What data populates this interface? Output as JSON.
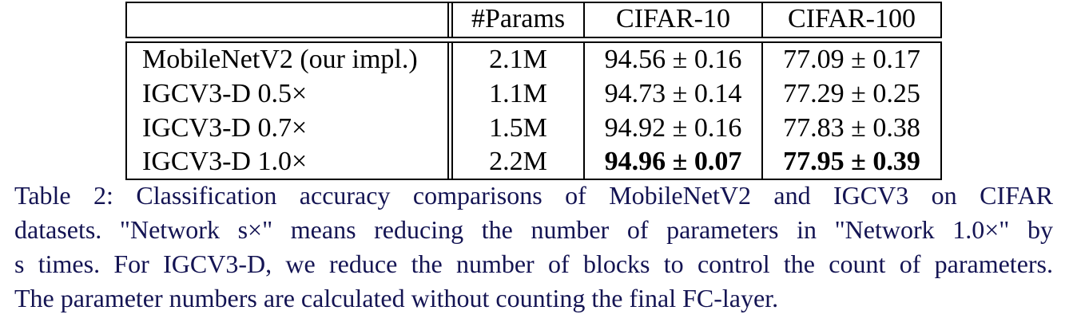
{
  "table": {
    "headers": [
      "",
      "#Params",
      "CIFAR-10",
      "CIFAR-100"
    ],
    "rows": [
      {
        "model": "MobileNetV2 (our impl.)",
        "params": "2.1M",
        "cifar10": "94.56 ± 0.16",
        "cifar100": "77.09 ± 0.17",
        "bold": false
      },
      {
        "model": "IGCV3-D 0.5×",
        "params": "1.1M",
        "cifar10": "94.73 ± 0.14",
        "cifar100": "77.29 ± 0.25",
        "bold": false
      },
      {
        "model": "IGCV3-D 0.7×",
        "params": "1.5M",
        "cifar10": "94.92 ± 0.16",
        "cifar100": "77.83 ± 0.38",
        "bold": false
      },
      {
        "model": "IGCV3-D 1.0×",
        "params": "2.2M",
        "cifar10": "94.96 ± 0.07",
        "cifar100": "77.95 ± 0.39",
        "bold": true
      }
    ]
  },
  "caption": {
    "lines": [
      "Table 2: Classification accuracy comparisons of MobileNetV2 and IGCV3 on CIFAR",
      "datasets. \"Network s×\" means reducing the number of parameters in \"Network 1.0×\" by",
      "s times. For IGCV3-D, we reduce the number of blocks to control the count of parameters.",
      "The parameter numbers are calculated without counting the final FC-layer."
    ]
  },
  "colors": {
    "caption_text": "#141453",
    "table_text": "#000000"
  }
}
